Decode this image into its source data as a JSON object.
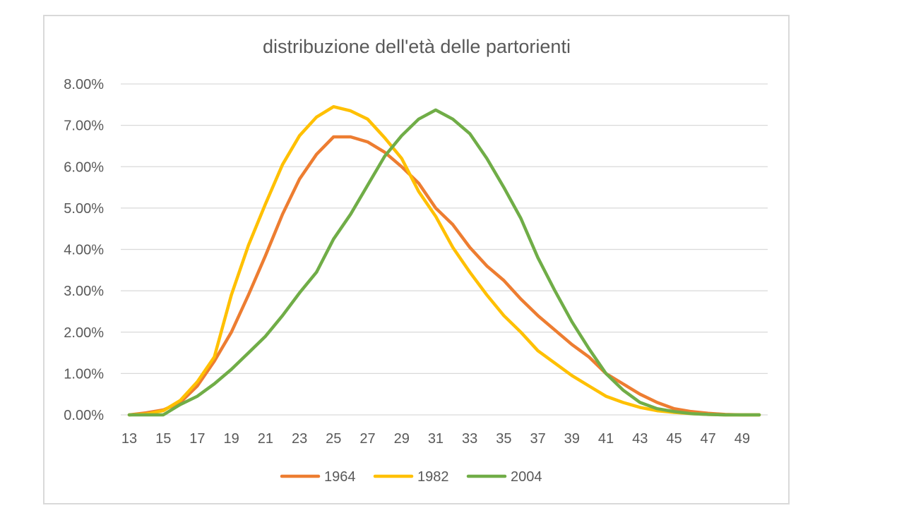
{
  "chart_data": {
    "type": "line",
    "title": "distribuzione dell'età delle partorienti",
    "xlabel": "",
    "ylabel": "",
    "x": [
      13,
      14,
      15,
      16,
      17,
      18,
      19,
      20,
      21,
      22,
      23,
      24,
      25,
      26,
      27,
      28,
      29,
      30,
      31,
      32,
      33,
      34,
      35,
      36,
      37,
      38,
      39,
      40,
      41,
      42,
      43,
      44,
      45,
      46,
      47,
      48,
      49,
      50
    ],
    "x_tick_labels": [
      "13",
      "15",
      "17",
      "19",
      "21",
      "23",
      "25",
      "27",
      "29",
      "31",
      "33",
      "35",
      "37",
      "39",
      "41",
      "43",
      "45",
      "47",
      "49"
    ],
    "y_tick_labels": [
      "0.00%",
      "1.00%",
      "2.00%",
      "3.00%",
      "4.00%",
      "5.00%",
      "6.00%",
      "7.00%",
      "8.00%"
    ],
    "ylim": [
      0,
      8
    ],
    "y_unit": "%",
    "grid": "horizontal",
    "legend_position": "bottom",
    "series": [
      {
        "name": "1964",
        "color": "#ED7D31",
        "values": [
          0.0,
          0.05,
          0.12,
          0.3,
          0.7,
          1.3,
          2.0,
          2.9,
          3.85,
          4.85,
          5.7,
          6.3,
          6.72,
          6.72,
          6.6,
          6.35,
          6.0,
          5.6,
          5.0,
          4.6,
          4.05,
          3.6,
          3.25,
          2.8,
          2.4,
          2.05,
          1.7,
          1.4,
          1.0,
          0.75,
          0.5,
          0.3,
          0.15,
          0.08,
          0.04,
          0.01,
          0.0,
          0.0
        ]
      },
      {
        "name": "1982",
        "color": "#FFC000",
        "values": [
          0.0,
          0.02,
          0.1,
          0.35,
          0.8,
          1.4,
          2.9,
          4.1,
          5.1,
          6.05,
          6.75,
          7.2,
          7.45,
          7.35,
          7.15,
          6.7,
          6.2,
          5.4,
          4.8,
          4.05,
          3.45,
          2.9,
          2.4,
          2.0,
          1.55,
          1.25,
          0.95,
          0.7,
          0.45,
          0.3,
          0.18,
          0.1,
          0.06,
          0.03,
          0.01,
          0.0,
          0.0,
          0.0
        ]
      },
      {
        "name": "2004",
        "color": "#70AD47",
        "values": [
          0.0,
          0.0,
          0.0,
          0.25,
          0.45,
          0.75,
          1.1,
          1.5,
          1.9,
          2.4,
          2.95,
          3.45,
          4.25,
          4.85,
          5.55,
          6.25,
          6.75,
          7.15,
          7.37,
          7.15,
          6.8,
          6.2,
          5.5,
          4.75,
          3.8,
          3.0,
          2.25,
          1.6,
          1.0,
          0.6,
          0.3,
          0.15,
          0.08,
          0.03,
          0.01,
          0.0,
          0.0,
          0.0
        ]
      }
    ]
  }
}
